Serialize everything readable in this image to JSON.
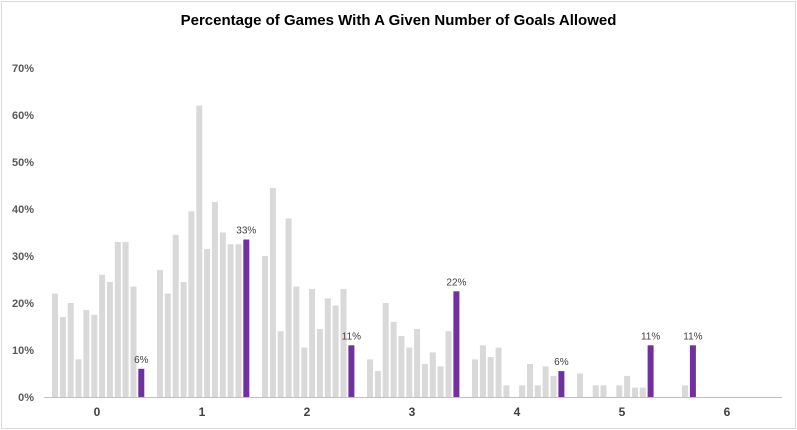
{
  "chart_data": {
    "type": "bar",
    "title": "Percentage of Games With A Given Number of Goals Allowed",
    "xlabel": "",
    "ylabel": "",
    "ylim": [
      0,
      70
    ],
    "yticks": [
      "0%",
      "10%",
      "20%",
      "30%",
      "40%",
      "50%",
      "60%",
      "70%"
    ],
    "grid": false,
    "legend": "none",
    "colors": {
      "context": "#d9d9d9",
      "highlight": "#7030a0"
    },
    "groups": [
      {
        "label": "0",
        "values": [
          22,
          17,
          20,
          8,
          18.5,
          17.5,
          26,
          24.5,
          33,
          33,
          23.5,
          6
        ],
        "data_label": "6%"
      },
      {
        "label": "1",
        "values": [
          27,
          22,
          34.5,
          24.5,
          39.5,
          62,
          31.5,
          41.5,
          35,
          32.5,
          32.5,
          33.5
        ],
        "data_label": "33%"
      },
      {
        "label": "2",
        "values": [
          30,
          44.5,
          14,
          38,
          23.5,
          10.5,
          23,
          14.5,
          21,
          19.5,
          23,
          11
        ],
        "data_label": "11%"
      },
      {
        "label": "3",
        "values": [
          8,
          5.5,
          20,
          16,
          13,
          10.5,
          14.5,
          7,
          9.5,
          6.5,
          14,
          22.5
        ],
        "data_label": "22%"
      },
      {
        "label": "4",
        "values": [
          8,
          11,
          8.5,
          10.5,
          2.5,
          0,
          2.5,
          7,
          2.5,
          6.5,
          4.5,
          5.5
        ],
        "data_label": "6%"
      },
      {
        "label": "5",
        "values": [
          5,
          0,
          2.5,
          2.5,
          0,
          2.5,
          4.5,
          2,
          2,
          11
        ],
        "data_label": "11%"
      },
      {
        "label": "6",
        "values": [
          2.5,
          11
        ],
        "data_label": "11%"
      }
    ]
  }
}
